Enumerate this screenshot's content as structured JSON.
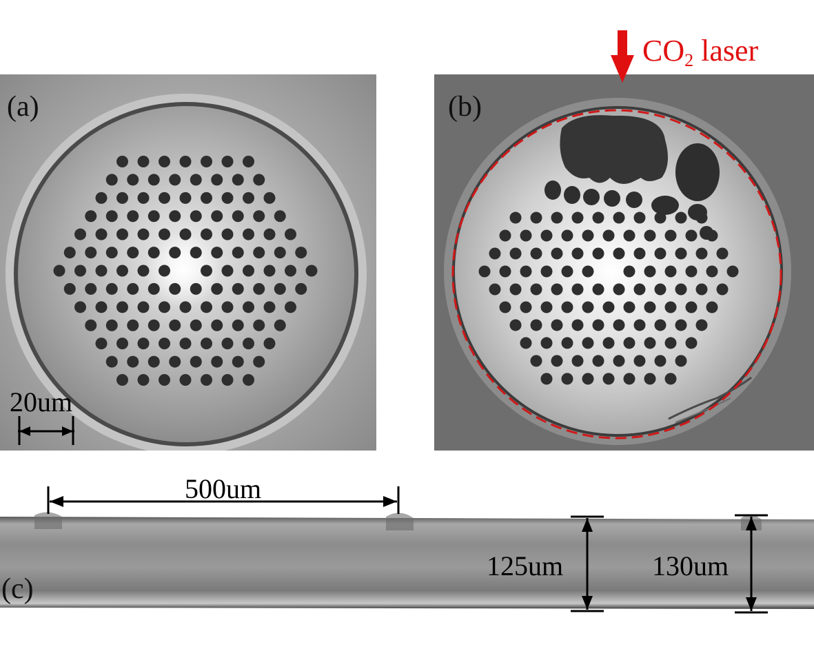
{
  "panels": {
    "a": {
      "label": "(a)",
      "scale_bar": "20um"
    },
    "b": {
      "label": "(b)",
      "annotation": {
        "text_main": "CO",
        "text_sub": "2",
        "text_tail": " laser",
        "color": "#e01010"
      }
    },
    "c": {
      "label": "(c)",
      "spacing": "500um",
      "diameter_1": "125um",
      "diameter_2": "130um"
    }
  },
  "colors": {
    "laser_arrow": "#e01010",
    "outline_dash": "#d01818"
  }
}
